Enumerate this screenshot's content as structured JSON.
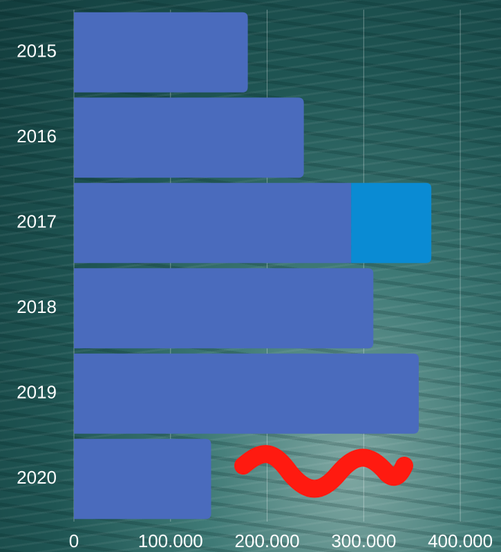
{
  "chart_data": {
    "type": "bar",
    "orientation": "horizontal",
    "stacked": true,
    "categories": [
      "2015",
      "2016",
      "2017",
      "2018",
      "2019",
      "2020"
    ],
    "series": [
      {
        "color": "#4a6bbd",
        "values": [
          180000,
          238000,
          287000,
          310000,
          357000,
          142000
        ]
      },
      {
        "color": "#0a8bd3",
        "values": [
          null,
          null,
          83000,
          null,
          null,
          null
        ]
      }
    ],
    "xlim": [
      0,
      440000
    ],
    "xticks": [
      0,
      {
        "value": 100000,
        "label": "100.000"
      },
      {
        "value": 200000,
        "label": "200.000"
      },
      {
        "value": 300000,
        "label": "300.000"
      },
      {
        "value": 400000,
        "label": "400.000"
      }
    ],
    "grid": true
  }
}
